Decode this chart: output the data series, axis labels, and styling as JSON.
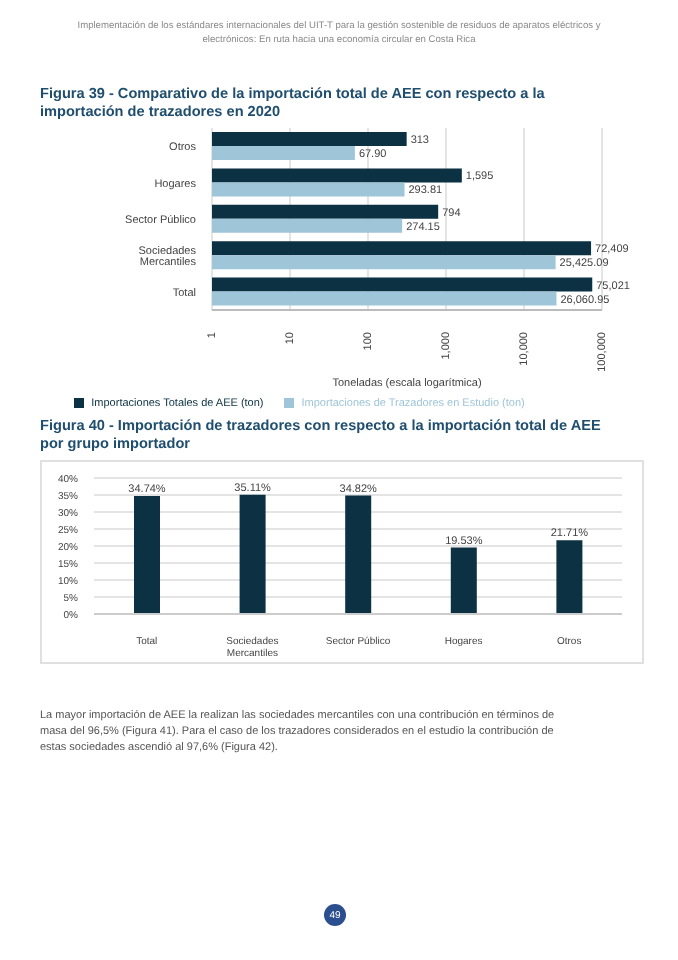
{
  "chart_data": [
    {
      "type": "bar",
      "orientation": "horizontal",
      "log": "x",
      "title": "Figura 39 - Comparativo de la importación total de AEE con respecto a la importación de trazadores en 2020",
      "xlabel": "Toneladas (escala logarítmica)",
      "categories": [
        "Otros",
        "Hogares",
        "Sector Público",
        "Sociedades Mercantiles",
        "Total"
      ],
      "series": [
        {
          "name": "Importaciones Totales de AEE (ton)",
          "color": "#0b3142",
          "values": [
            313,
            1595,
            794,
            72409,
            75021
          ],
          "value_labels": [
            "313",
            "1,595",
            "794",
            "72,409",
            "75,021"
          ]
        },
        {
          "name": "Importaciones de Trazadores en Estudio (ton)",
          "color": "#9fc5d9",
          "values": [
            67.9,
            293.81,
            274.15,
            25425.09,
            26060.95
          ],
          "value_labels": [
            "67.90",
            "293.81",
            "274.15",
            "25,425.09",
            "26,060.95"
          ]
        }
      ],
      "xlim": [
        1,
        100000
      ],
      "xticks": [
        1,
        10,
        100,
        {
          "value": 1000,
          "label": "1,000"
        },
        {
          "value": 10000,
          "label": "10,000"
        },
        {
          "value": 100000,
          "label": "100,000"
        }
      ],
      "grid": "x",
      "legend": "bottom",
      "annotations": [
        "Implementación de los estándares internacionales del UIT-T para la gestión sostenible de residuos de aparatos eléctricos y electrónicos: En ruta hacia una economía circular en Costa Rica"
      ]
    },
    {
      "type": "bar",
      "title": "Figura 40 - Importación de trazadores con respecto a la importación total de AEE por grupo importador",
      "categories": [
        "Total",
        "Sociedades Mercantiles",
        "Sector Público",
        "Hogares",
        "Otros"
      ],
      "series": [
        {
          "color": "#0b3142",
          "values": [
            34.74,
            35.11,
            34.82,
            19.53,
            21.71
          ],
          "value_labels": [
            "34.74%",
            "35.11%",
            "34.82%",
            "19.53%",
            "21.71%"
          ]
        }
      ],
      "ylim": [
        0,
        40
      ],
      "yticks": [
        {
          "value": 0,
          "label": "0%"
        },
        {
          "value": 5,
          "label": "5%"
        },
        {
          "value": 10,
          "label": "10%"
        },
        {
          "value": 15,
          "label": "15%"
        },
        {
          "value": 20,
          "label": "20%"
        },
        {
          "value": 25,
          "label": "25%"
        },
        {
          "value": 30,
          "label": "30%"
        },
        {
          "value": 35,
          "label": "35%"
        },
        {
          "value": 40,
          "label": "40%"
        }
      ],
      "grid": "y",
      "annotations": [
        "La mayor importación de AEE la realizan las sociedades mercantiles con una contribución en términos de masa del 96,5% (Figura 41). Para el caso de los trazadores considerados en el estudio la contribución de estas sociedades ascendió al 97,6% (Figura 42).",
        "49"
      ]
    }
  ]
}
